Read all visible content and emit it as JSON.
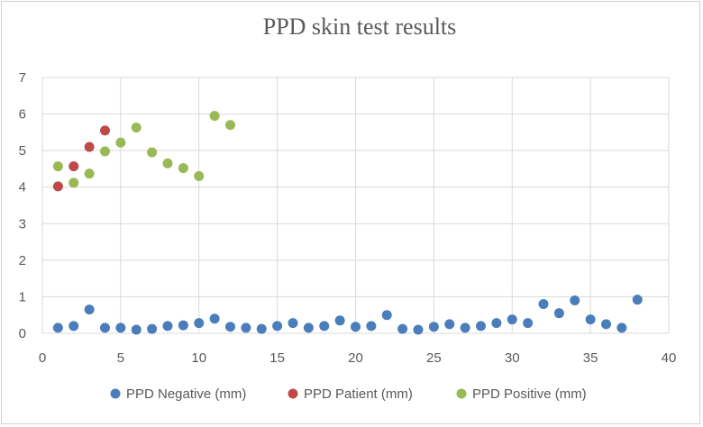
{
  "chart_data": {
    "type": "scatter",
    "title": "PPD skin test results",
    "xlabel": "",
    "ylabel": "",
    "xlim": [
      0,
      40
    ],
    "ylim": [
      0,
      7
    ],
    "x_ticks": [
      0,
      5,
      10,
      15,
      20,
      25,
      30,
      35,
      40
    ],
    "y_ticks": [
      0,
      1,
      2,
      3,
      4,
      5,
      6,
      7
    ],
    "grid": true,
    "legend_position": "bottom",
    "series": [
      {
        "name": "PPD Negative (mm)",
        "color": "#4a7ebb",
        "x": [
          1,
          2,
          3,
          4,
          5,
          6,
          7,
          8,
          9,
          10,
          11,
          12,
          13,
          14,
          15,
          16,
          17,
          18,
          19,
          20,
          21,
          22,
          23,
          24,
          25,
          26,
          27,
          28,
          29,
          30,
          31,
          32,
          33,
          34,
          35,
          36,
          37,
          38
        ],
        "y": [
          0.15,
          0.2,
          0.65,
          0.15,
          0.15,
          0.1,
          0.12,
          0.2,
          0.22,
          0.28,
          0.4,
          0.18,
          0.15,
          0.12,
          0.2,
          0.28,
          0.15,
          0.2,
          0.35,
          0.18,
          0.2,
          0.5,
          0.12,
          0.1,
          0.18,
          0.25,
          0.15,
          0.2,
          0.28,
          0.38,
          0.28,
          0.8,
          0.55,
          0.9,
          0.38,
          0.25,
          0.15,
          0.92
        ]
      },
      {
        "name": "PPD Patient (mm)",
        "color": "#be4b48",
        "x": [
          1,
          2,
          3,
          4
        ],
        "y": [
          4.02,
          4.57,
          5.1,
          5.55
        ]
      },
      {
        "name": "PPD Positive (mm)",
        "color": "#98b954",
        "x": [
          1,
          2,
          3,
          4,
          5,
          6,
          7,
          8,
          9,
          10,
          11,
          12
        ],
        "y": [
          4.57,
          4.12,
          4.37,
          4.98,
          5.22,
          5.63,
          4.95,
          4.65,
          4.52,
          4.3,
          5.95,
          5.7
        ]
      }
    ]
  }
}
